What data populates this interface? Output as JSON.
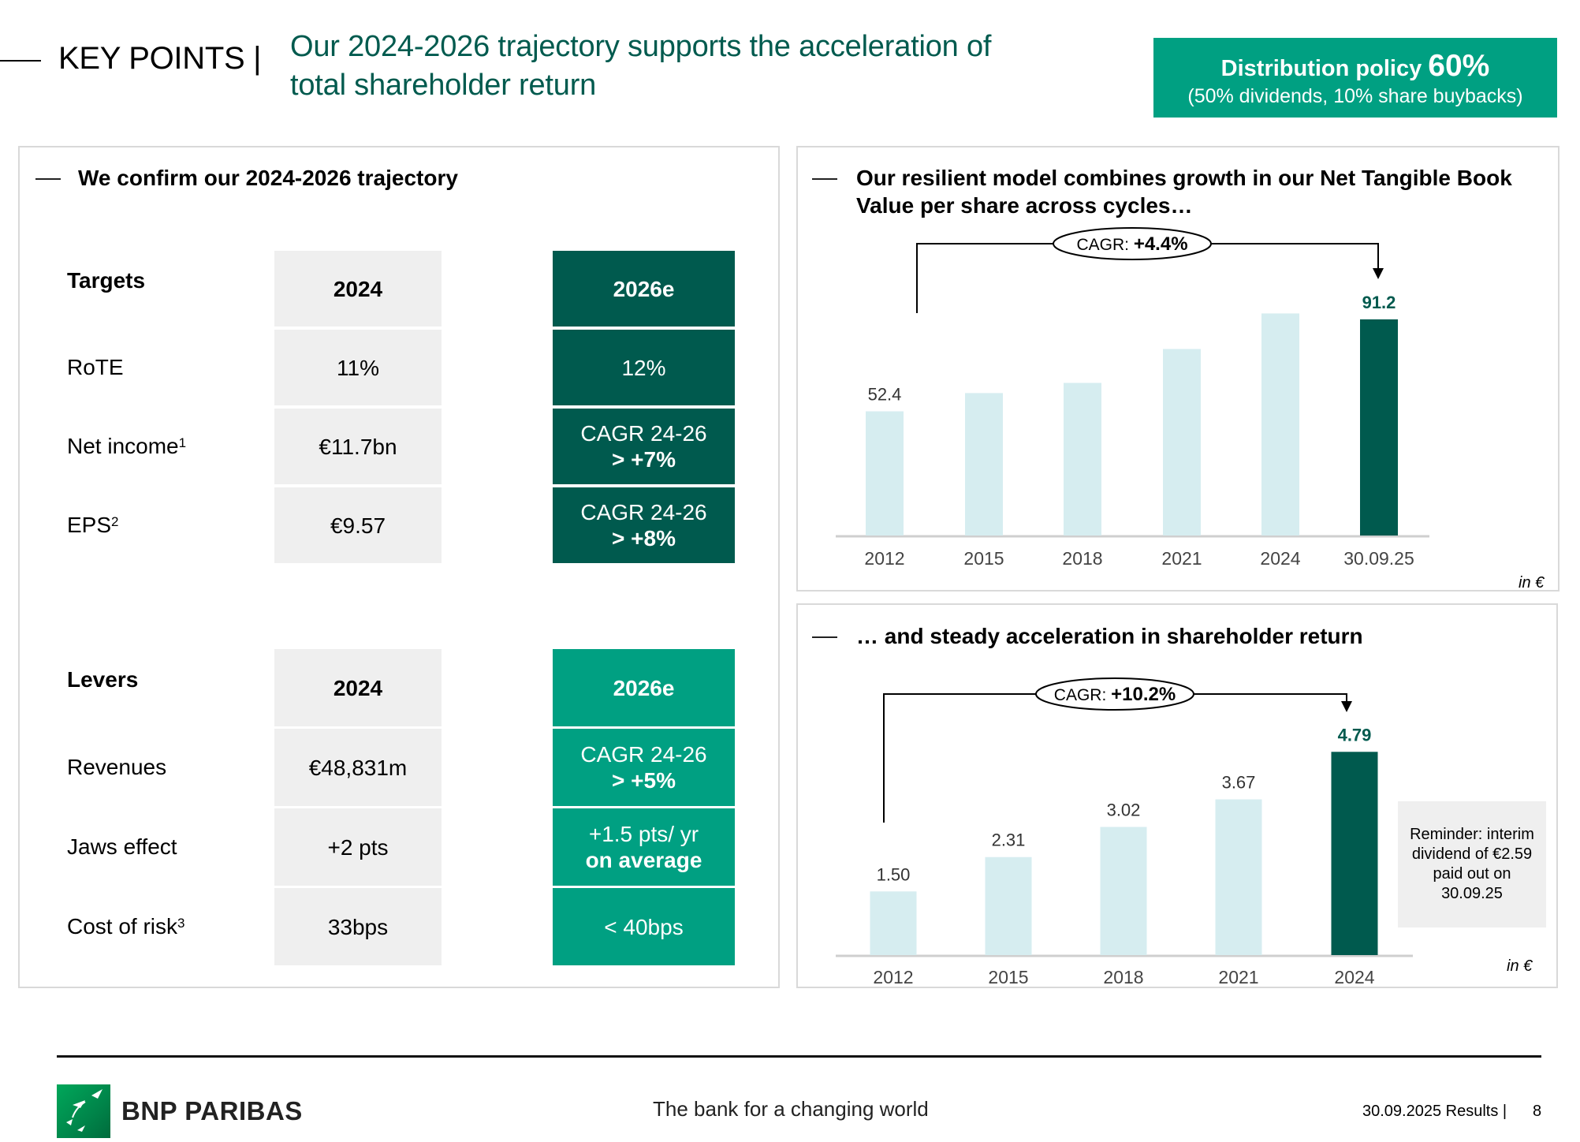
{
  "header": {
    "section": "KEY POINTS |",
    "title_line1": "Our 2024-2026 trajectory supports the acceleration of",
    "title_line2": "total shareholder return",
    "distribution": {
      "label": "Distribution policy",
      "value": "60%",
      "detail": "(50% dividends, 10% share buybacks)"
    }
  },
  "left_panel": {
    "title": "We confirm our 2024-2026 trajectory",
    "targets": {
      "header": {
        "label": "Targets",
        "col1": "2024",
        "col2": "2026e"
      },
      "rows": [
        {
          "label": "RoTE",
          "sup": "",
          "v2024": "11%",
          "v2026_l1": "12%",
          "v2026_l2": ""
        },
        {
          "label": "Net income",
          "sup": "1",
          "v2024": "€11.7bn",
          "v2026_l1": "CAGR 24-26",
          "v2026_l2": "> +7%"
        },
        {
          "label": "EPS",
          "sup": "2",
          "v2024": "€9.57",
          "v2026_l1": "CAGR 24-26",
          "v2026_l2": "> +8%"
        }
      ]
    },
    "levers": {
      "header": {
        "label": "Levers",
        "col1": "2024",
        "col2": "2026e"
      },
      "rows": [
        {
          "label": "Revenues",
          "sup": "",
          "v2024": "€48,831m",
          "v2026_l1": "CAGR 24-26",
          "v2026_l2": "> +5%"
        },
        {
          "label": "Jaws effect",
          "sup": "",
          "v2024": "+2 pts",
          "v2026_l1": "+1.5 pts/ yr",
          "v2026_l2": "on average"
        },
        {
          "label": "Cost of risk",
          "sup": "3",
          "v2024": "33bps",
          "v2026_l1": "< 40bps",
          "v2026_l2": ""
        }
      ]
    }
  },
  "colors": {
    "dark_green": "#005a4e",
    "teal": "#00a082",
    "light_bar": "#d6edf0",
    "gray_cell": "#efefef"
  },
  "chart_data": [
    {
      "type": "bar",
      "title": "Our resilient model combines growth in our Net Tangible Book Value per share across cycles…",
      "categories": [
        "2012",
        "2015",
        "2018",
        "2021",
        "2024",
        "30.09.25"
      ],
      "values": [
        52.4,
        60.1,
        64.4,
        78.7,
        93.7,
        91.2
      ],
      "data_labels": [
        "52.4",
        "",
        "",
        "",
        "",
        "91.2"
      ],
      "highlight_index": 5,
      "annotation": {
        "prefix": "CAGR: ",
        "value": "+4.4%"
      },
      "unit_note": "in €",
      "ylim": [
        0,
        100
      ],
      "grid": false
    },
    {
      "type": "bar",
      "title": "… and steady acceleration in shareholder return",
      "categories": [
        "2012",
        "2015",
        "2018",
        "2021",
        "2024"
      ],
      "values": [
        1.5,
        2.31,
        3.02,
        3.67,
        4.79
      ],
      "data_labels": [
        "1.50",
        "2.31",
        "3.02",
        "3.67",
        "4.79"
      ],
      "highlight_index": 4,
      "annotation": {
        "prefix": "CAGR: ",
        "value": "+10.2%"
      },
      "unit_note": "in €",
      "note": "Reminder: interim dividend of €2.59 paid out on 30.09.25",
      "ylim": [
        0,
        5
      ],
      "grid": false
    }
  ],
  "footer": {
    "brand": "BNP PARIBAS",
    "tagline": "The bank for a changing world",
    "results": "30.09.2025 Results |",
    "page": "8"
  }
}
